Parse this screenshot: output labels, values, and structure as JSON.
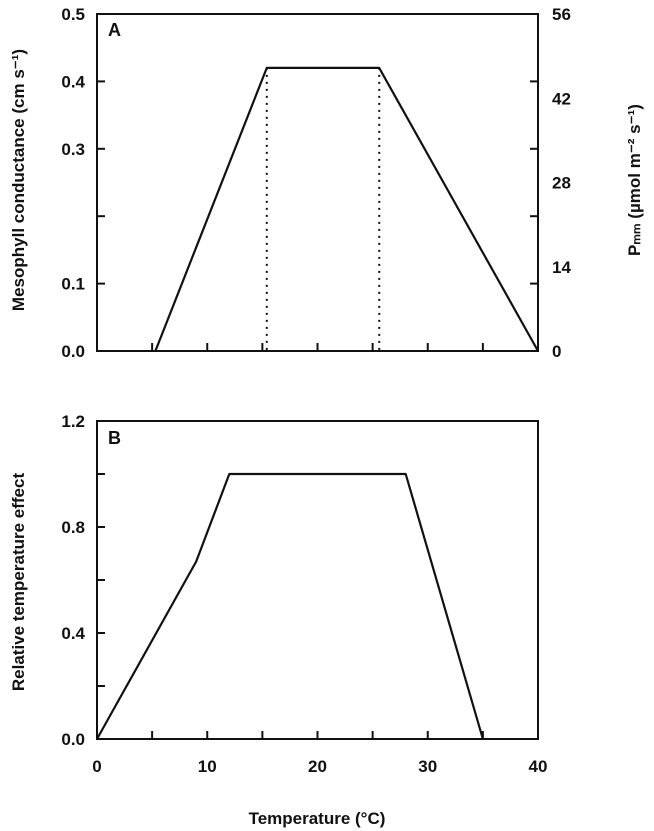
{
  "chart_data": [
    {
      "type": "line",
      "panel_label": "A",
      "xlim": [
        0,
        40
      ],
      "x_ticks": [
        0,
        5,
        10,
        15,
        20,
        25,
        30,
        35,
        40
      ],
      "ylabel": "Mesophyll conductance (cm s⁻¹)",
      "ylim": [
        0,
        0.5
      ],
      "y_ticks": [
        0.0,
        0.1,
        0.3,
        0.4,
        0.5
      ],
      "y_minor_ticks": [
        0.2
      ],
      "y_tick_labels": [
        "0.0",
        "0.1",
        "0.3",
        "0.4",
        "0.5"
      ],
      "y2label": "Pₘₘ (µmol m⁻² s⁻¹)",
      "y2lim": [
        0,
        56
      ],
      "y2_ticks": [
        0,
        14,
        28,
        42,
        56
      ],
      "y2_tick_labels": [
        "0",
        "14",
        "28",
        "42",
        "56"
      ],
      "series": [
        {
          "x": [
            5.3,
            15.4,
            25.6,
            40.0
          ],
          "y": [
            0.0,
            0.42,
            0.42,
            0.0
          ]
        }
      ],
      "vertical_guides": [
        15.4,
        25.6
      ]
    },
    {
      "type": "line",
      "panel_label": "B",
      "xlabel": "Temperature (°C)",
      "xlim": [
        0,
        40
      ],
      "x_ticks": [
        0,
        5,
        10,
        15,
        20,
        25,
        30,
        35,
        40
      ],
      "x_tick_labels": [
        "0",
        "",
        "10",
        "",
        "20",
        "",
        "30",
        "",
        "40"
      ],
      "ylabel": "Relative temperature effect",
      "ylim": [
        0,
        1.2
      ],
      "y_ticks": [
        0.0,
        0.2,
        0.4,
        0.6,
        0.8,
        1.0,
        1.2
      ],
      "y_tick_labels": [
        "0.0",
        "",
        "0.4",
        "",
        "0.8",
        "",
        "1.2"
      ],
      "series": [
        {
          "x": [
            0,
            9,
            12,
            28,
            35
          ],
          "y": [
            0.0,
            0.67,
            1.0,
            1.0,
            0.0
          ]
        }
      ]
    }
  ]
}
